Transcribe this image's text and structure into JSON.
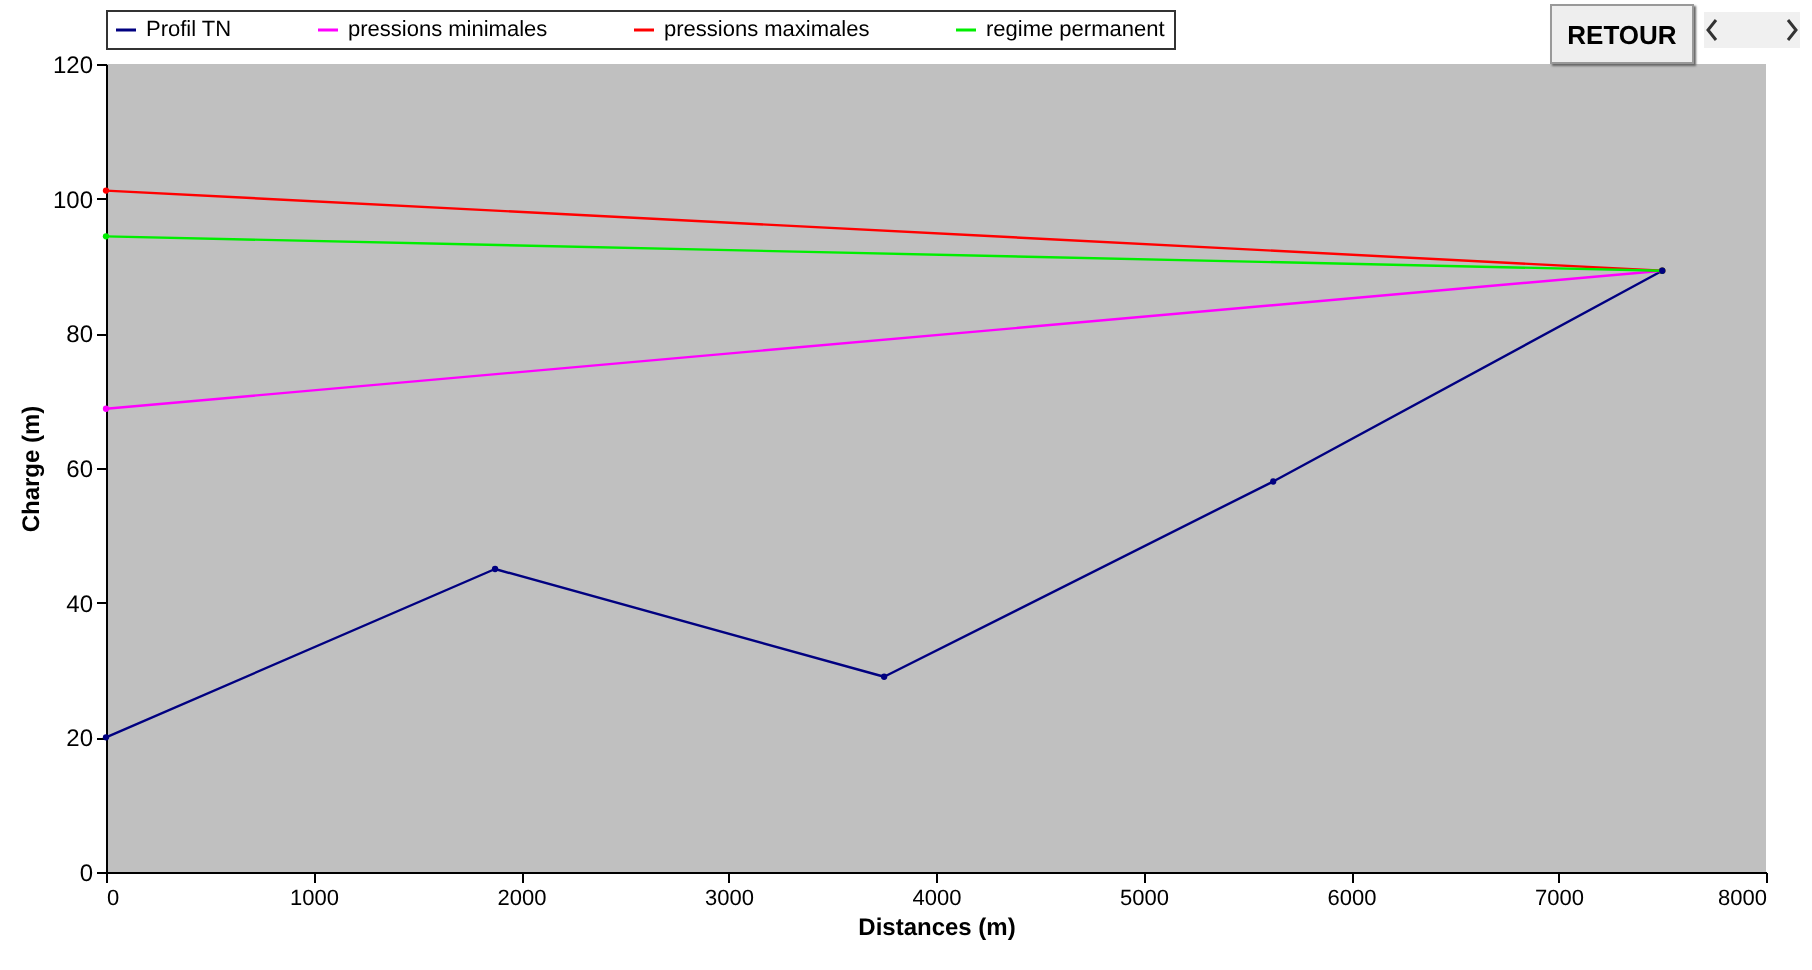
{
  "chart_data": {
    "type": "line",
    "xlabel": "Distances (m)",
    "ylabel": "Charge (m)",
    "series": [
      {
        "name": "Profil TN",
        "color": "#000080",
        "x": [
          0,
          1875,
          3750,
          5625,
          7500
        ],
        "values": [
          20,
          45,
          29,
          58,
          89.3
        ]
      },
      {
        "name": "pressions minimales",
        "color": "#ff00ff",
        "x": [
          0,
          7500
        ],
        "values": [
          68.8,
          89.3
        ]
      },
      {
        "name": "pressions maximales",
        "color": "#ff0000",
        "x": [
          0,
          7500
        ],
        "values": [
          101.2,
          89.3
        ]
      },
      {
        "name": "regime permanent",
        "color": "#00ee00",
        "x": [
          0,
          7500
        ],
        "values": [
          94.4,
          89.3
        ]
      }
    ],
    "xlim": [
      0,
      8000
    ],
    "xticks": [
      0,
      1000,
      2000,
      3000,
      4000,
      5000,
      6000,
      7000,
      8000
    ],
    "ylim": [
      0,
      120
    ],
    "yticks": [
      0,
      20,
      40,
      60,
      80,
      100,
      120
    ],
    "legend": "top",
    "marker": "circle",
    "annotations": [
      "RETOUR"
    ]
  }
}
